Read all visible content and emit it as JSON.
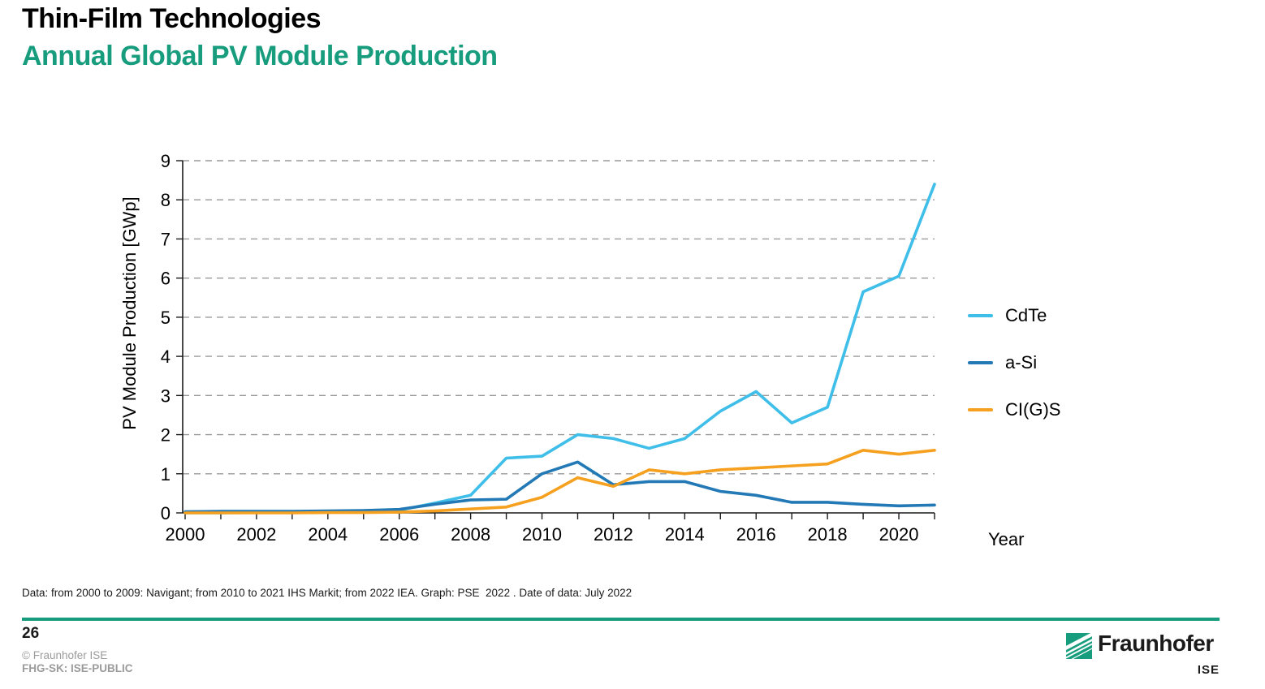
{
  "header": {
    "title": "Thin-Film Technologies",
    "subtitle": "Annual Global PV Module Production"
  },
  "chart_data": {
    "type": "line",
    "title": "",
    "xlabel": "Year",
    "ylabel": "PV Module Production [GWp]",
    "ylim": [
      0,
      9
    ],
    "y_ticks": [
      0,
      1,
      2,
      3,
      4,
      5,
      6,
      7,
      8,
      9
    ],
    "grid": "horizontal-dashed",
    "legend_position": "right",
    "x": [
      2000,
      2001,
      2002,
      2003,
      2004,
      2005,
      2006,
      2007,
      2008,
      2009,
      2010,
      2011,
      2012,
      2013,
      2014,
      2015,
      2016,
      2017,
      2018,
      2019,
      2020,
      2021
    ],
    "x_tick_labels": [
      2000,
      2002,
      2004,
      2006,
      2008,
      2010,
      2012,
      2014,
      2016,
      2018,
      2020
    ],
    "series": [
      {
        "name": "CdTe",
        "color": "#3EBEE8",
        "values": [
          0.0,
          0.0,
          0.01,
          0.01,
          0.02,
          0.04,
          0.07,
          0.25,
          0.45,
          1.4,
          1.45,
          2.0,
          1.9,
          1.65,
          1.9,
          2.6,
          3.1,
          2.3,
          2.7,
          5.65,
          6.05,
          8.4
        ]
      },
      {
        "name": "a-Si",
        "color": "#2279B5",
        "values": [
          0.03,
          0.04,
          0.04,
          0.04,
          0.05,
          0.06,
          0.09,
          0.22,
          0.33,
          0.35,
          1.0,
          1.3,
          0.72,
          0.8,
          0.8,
          0.55,
          0.45,
          0.27,
          0.27,
          0.22,
          0.18,
          0.2
        ]
      },
      {
        "name": "CI(G)S",
        "color": "#F5A01E",
        "values": [
          0.0,
          0.0,
          0.0,
          0.0,
          0.01,
          0.01,
          0.02,
          0.05,
          0.1,
          0.15,
          0.4,
          0.9,
          0.68,
          1.1,
          1.0,
          1.1,
          1.15,
          1.2,
          1.25,
          1.6,
          1.5,
          1.6
        ]
      }
    ]
  },
  "source_note": "Data: from 2000 to 2009: Navigant; from 2010 to 2021 IHS Markit; from 2022 IEA. Graph: PSE  2022 . Date of data: July 2022",
  "footer": {
    "page_number": "26",
    "copyright": "© Fraunhofer ISE",
    "classification": "FHG-SK: ISE-PUBLIC",
    "logo_wordmark": "Fraunhofer",
    "logo_sub": "ISE",
    "accent_color": "#179C7D"
  }
}
